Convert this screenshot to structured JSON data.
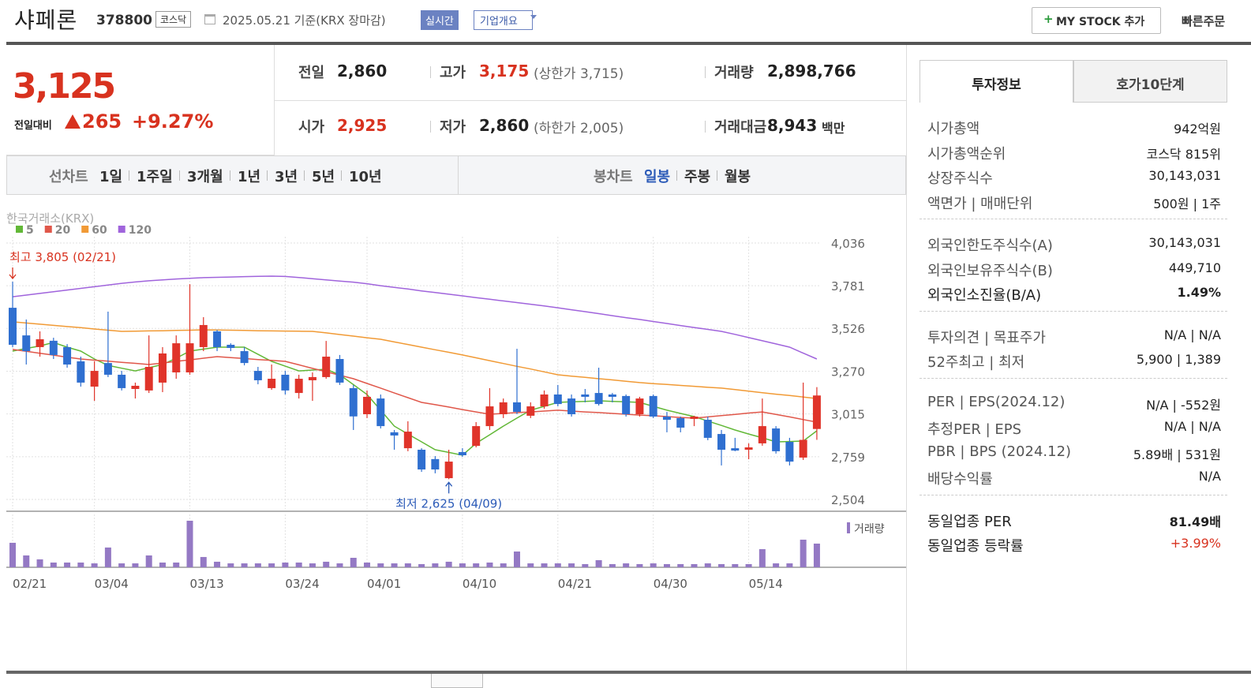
{
  "header": {
    "name": "샤페론",
    "code": "378800",
    "market": "코스닥",
    "date": "2025.05.21 기준(KRX 장마감)",
    "realtime": "실시간",
    "company": "기업개요",
    "mystock": "MY STOCK 추가",
    "quick_order": "빠른주문"
  },
  "price": {
    "current": "3,125",
    "change_label": "전일대비",
    "change": "265",
    "rate": "+9.27%"
  },
  "stats": [
    [
      {
        "label": "전일",
        "value": "2,860"
      },
      {
        "label": "고가",
        "value": "3,175",
        "note": "(상한가 3,715)",
        "color": "#d8321f"
      },
      {
        "label": "거래량",
        "value": "2,898,766"
      }
    ],
    [
      {
        "label": "시가",
        "value": "2,925",
        "color": "#d8321f"
      },
      {
        "label": "저가",
        "value": "2,860",
        "note": "(하한가 2,005)"
      },
      {
        "label": "거래대금",
        "value": "8,943",
        "unit": "백만"
      }
    ]
  ],
  "period_tabs": {
    "line_label": "선차트",
    "line": [
      "1일",
      "1주일",
      "3개월",
      "1년",
      "3년",
      "5년",
      "10년"
    ],
    "candle_label": "봉차트",
    "candle": [
      "일봉",
      "주봉",
      "월봉"
    ],
    "selected_candle": 0
  },
  "chart_data": {
    "type": "candlestick",
    "source": "한국거래소(KRX)",
    "up_color": "#e0342a",
    "down_color": "#2f6fd0",
    "categories": [
      "02/21",
      null,
      null,
      null,
      null,
      null,
      "03/04",
      null,
      null,
      null,
      null,
      null,
      null,
      "03/13",
      null,
      null,
      null,
      null,
      null,
      null,
      "03/24",
      null,
      null,
      null,
      null,
      null,
      "04/01",
      null,
      null,
      null,
      null,
      null,
      null,
      "04/10",
      null,
      null,
      null,
      null,
      null,
      null,
      "04/21",
      null,
      null,
      null,
      null,
      null,
      null,
      "04/30",
      null,
      null,
      null,
      null,
      null,
      null,
      "05/14",
      null,
      null,
      null,
      null,
      null
    ],
    "open": [
      3649,
      3484,
      3414,
      3452,
      3414,
      3329,
      3178,
      3319,
      3249,
      3164,
      3155,
      3202,
      3263,
      3263,
      3414,
      3508,
      3428,
      3390,
      3272,
      3169,
      3249,
      3140,
      3216,
      3235,
      3343,
      3169,
      3013,
      3107,
      2905,
      2810,
      2801,
      2745,
      2631,
      2787,
      2824,
      2942,
      3013,
      3084,
      3004,
      3060,
      3131,
      3107,
      3131,
      3140,
      3131,
      3122,
      3013,
      3122,
      2999,
      2990,
      2985,
      2980,
      2895,
      2810,
      2801,
      2839,
      2928,
      2848,
      2754,
      2925
    ],
    "high": [
      3805,
      3579,
      3508,
      3470,
      3432,
      3357,
      3329,
      3626,
      3272,
      3202,
      3484,
      3414,
      3484,
      3790,
      3593,
      3517,
      3437,
      3414,
      3296,
      3310,
      3272,
      3249,
      3263,
      3451,
      3367,
      3188,
      3155,
      3131,
      2919,
      2971,
      2810,
      2763,
      2801,
      2810,
      2966,
      3169,
      3107,
      3404,
      3084,
      3155,
      3188,
      3131,
      3164,
      3291,
      3140,
      3131,
      3117,
      3131,
      3027,
      2999,
      3004,
      2999,
      2919,
      2872,
      2839,
      3107,
      2942,
      2872,
      3202,
      3175
    ],
    "low": [
      3414,
      3310,
      3357,
      3343,
      3291,
      3178,
      3093,
      3235,
      3155,
      3107,
      3140,
      3145,
      3225,
      3249,
      3390,
      3390,
      3390,
      3305,
      3192,
      3159,
      3131,
      3107,
      3093,
      3225,
      3188,
      2919,
      2990,
      2928,
      2801,
      2792,
      2669,
      2660,
      2625,
      2758,
      2815,
      2919,
      2990,
      3013,
      2990,
      3046,
      3060,
      2999,
      3084,
      3065,
      3084,
      2999,
      2999,
      2990,
      2905,
      2905,
      2942,
      2858,
      2707,
      2792,
      2744,
      2825,
      2778,
      2707,
      2740,
      2860
    ],
    "close": [
      3428,
      3390,
      3461,
      3367,
      3310,
      3202,
      3272,
      3249,
      3169,
      3183,
      3296,
      3376,
      3437,
      3437,
      3546,
      3414,
      3409,
      3319,
      3216,
      3225,
      3155,
      3225,
      3235,
      3357,
      3202,
      3000,
      3117,
      2942,
      2886,
      2909,
      2683,
      2683,
      2730,
      2768,
      2942,
      3060,
      3084,
      3027,
      3060,
      3131,
      3074,
      3013,
      3117,
      3074,
      3117,
      3013,
      3107,
      2999,
      2980,
      2933,
      2999,
      2872,
      2801,
      2796,
      2815,
      2942,
      2792,
      2730,
      2860,
      3125
    ],
    "moving_averages": [
      {
        "name": "5",
        "color": "#62b837",
        "values": [
          3390,
          3406,
          3421,
          3442,
          3414,
          3390,
          3343,
          3305,
          3288,
          3272,
          3291,
          3310,
          3348,
          3390,
          3402,
          3414,
          3414,
          3414,
          3371,
          3329,
          3300,
          3272,
          3277,
          3282,
          3249,
          3190,
          3131,
          3037,
          2942,
          2895,
          2848,
          2801,
          2785,
          2768,
          2839,
          2890,
          2942,
          2990,
          3037,
          3060,
          3084,
          3087,
          3090,
          3093,
          3090,
          3087,
          3084,
          3060,
          3037,
          3018,
          2999,
          2972,
          2946,
          2919,
          2895,
          2872,
          2848,
          2850,
          2853,
          2914
        ]
      },
      {
        "name": "20",
        "color": "#e0574a",
        "values": [
          3400,
          3389,
          3377,
          3366,
          3354,
          3343,
          3336,
          3330,
          3323,
          3317,
          3310,
          3319,
          3329,
          3338,
          3348,
          3357,
          3351,
          3346,
          3340,
          3335,
          3329,
          3308,
          3287,
          3267,
          3246,
          3225,
          3197,
          3169,
          3140,
          3112,
          3084,
          3070,
          3056,
          3041,
          3027,
          3013,
          3018,
          3023,
          3027,
          3032,
          3037,
          3032,
          3027,
          3023,
          3018,
          3013,
          3008,
          3004,
          2999,
          2994,
          2990,
          2997,
          3005,
          3012,
          3020,
          3027,
          3012,
          2997,
          2981,
          2966
        ]
      },
      {
        "name": "60",
        "color": "#f19a35",
        "values": [
          3565,
          3558,
          3551,
          3544,
          3537,
          3530,
          3522,
          3515,
          3508,
          3509,
          3511,
          3512,
          3514,
          3515,
          3517,
          3516,
          3515,
          3514,
          3512,
          3511,
          3510,
          3509,
          3508,
          3499,
          3489,
          3480,
          3470,
          3461,
          3445,
          3430,
          3414,
          3398,
          3383,
          3367,
          3350,
          3333,
          3316,
          3299,
          3283,
          3266,
          3249,
          3241,
          3233,
          3225,
          3218,
          3210,
          3202,
          3196,
          3191,
          3185,
          3180,
          3174,
          3169,
          3160,
          3151,
          3142,
          3133,
          3125,
          3116,
          3107
        ]
      },
      {
        "name": "120",
        "color": "#a064dc",
        "values": [
          3715,
          3725,
          3735,
          3745,
          3755,
          3765,
          3775,
          3785,
          3795,
          3803,
          3810,
          3816,
          3821,
          3825,
          3829,
          3831,
          3833,
          3835,
          3837,
          3838,
          3836,
          3830,
          3823,
          3816,
          3809,
          3802,
          3793,
          3781,
          3771,
          3761,
          3750,
          3740,
          3730,
          3720,
          3710,
          3700,
          3690,
          3680,
          3670,
          3660,
          3649,
          3637,
          3626,
          3614,
          3602,
          3590,
          3579,
          3567,
          3555,
          3543,
          3531,
          3520,
          3508,
          3490,
          3471,
          3452,
          3433,
          3414,
          3378,
          3343
        ]
      }
    ],
    "volume": {
      "name": "거래량",
      "color": "#9479c4",
      "values": [
        3000000,
        1450000,
        970000,
        580000,
        580000,
        580000,
        480000,
        2420000,
        480000,
        480000,
        1450000,
        580000,
        580000,
        5700000,
        1260000,
        680000,
        480000,
        480000,
        480000,
        480000,
        580000,
        580000,
        480000,
        680000,
        480000,
        1160000,
        580000,
        480000,
        480000,
        480000,
        390000,
        480000,
        680000,
        480000,
        480000,
        580000,
        480000,
        1930000,
        480000,
        480000,
        480000,
        480000,
        390000,
        870000,
        390000,
        480000,
        390000,
        480000,
        390000,
        390000,
        390000,
        480000,
        390000,
        390000,
        390000,
        2220000,
        480000,
        480000,
        3380000,
        2898766
      ]
    },
    "annotations": {
      "high": "최고 3,805 (02/21)",
      "low": "최저 2,625 (04/09)"
    },
    "ylim": [
      2504,
      4036
    ],
    "yticks": [
      {
        "value": 4036,
        "label": "4,036"
      },
      {
        "value": 3781,
        "label": "3,781"
      },
      {
        "value": 3526,
        "label": "3,526"
      },
      {
        "value": 3270,
        "label": "3,270"
      },
      {
        "value": 3015,
        "label": "3,015"
      },
      {
        "value": 2759,
        "label": "2,759"
      },
      {
        "value": 2504,
        "label": "2,504"
      }
    ],
    "grid": true
  },
  "info": {
    "tabs": [
      "투자정보",
      "호가10단계"
    ],
    "sections": [
      [
        [
          "시가총액",
          "942억원"
        ],
        [
          "시가총액순위",
          "코스닥 815위"
        ],
        [
          "상장주식수",
          "30,143,031"
        ],
        [
          "액면가 | 매매단위",
          "500원 | 1주"
        ]
      ],
      [
        [
          "외국인한도주식수(A)",
          "30,143,031"
        ],
        [
          "외국인보유주식수(B)",
          "449,710"
        ],
        [
          "외국인소진율(B/A)",
          "1.49%"
        ]
      ],
      [
        [
          "투자의견 | 목표주가",
          "N/A | N/A"
        ],
        [
          "52주최고 | 최저",
          "5,900 | 1,389"
        ]
      ],
      [
        [
          "PER | EPS(2024.12)",
          "N/A | -552원"
        ],
        [
          "추정PER | EPS",
          "N/A | N/A"
        ],
        [
          "PBR | BPS (2024.12)",
          "5.89배 | 531원"
        ],
        [
          "배당수익률",
          "N/A"
        ]
      ],
      [
        [
          "동일업종 PER",
          "81.49배"
        ],
        [
          "동일업종 등락률",
          "+3.99%"
        ]
      ]
    ]
  }
}
